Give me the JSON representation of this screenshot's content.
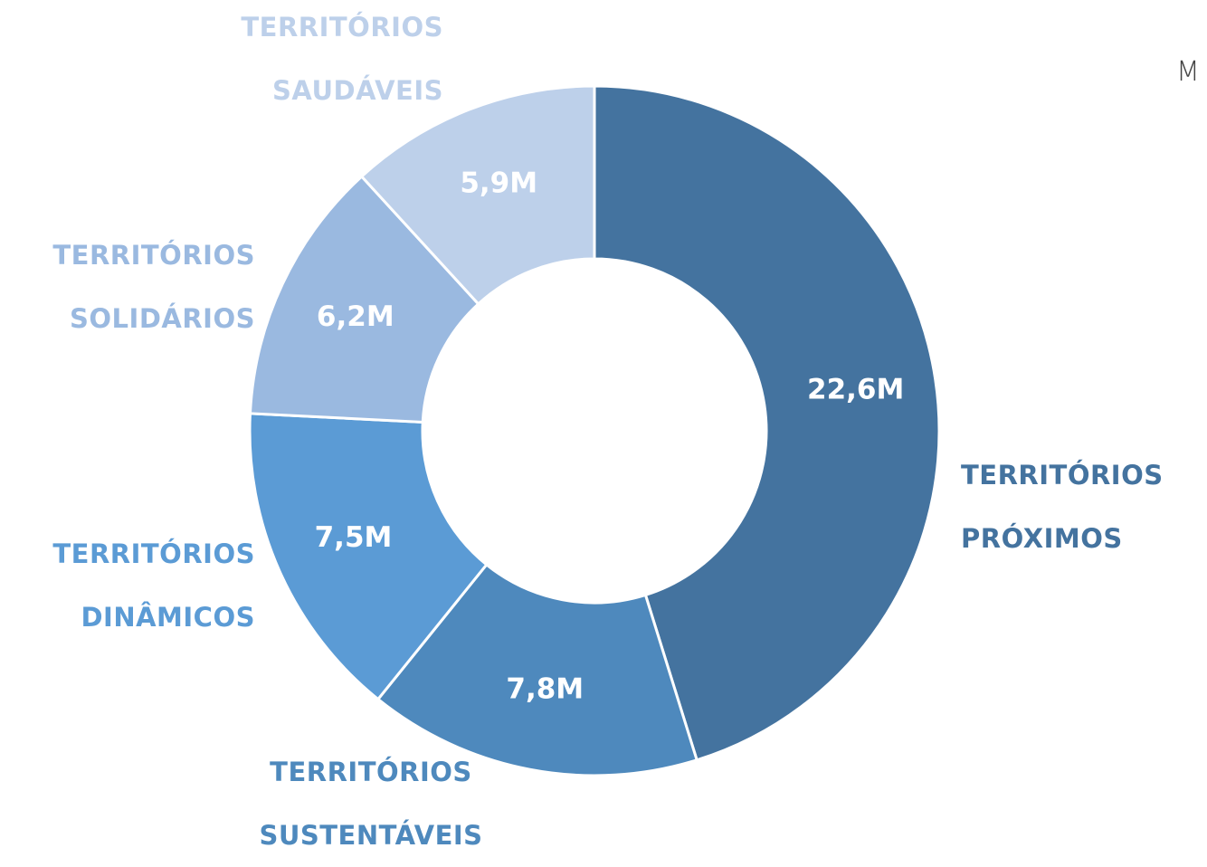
{
  "chart_data": {
    "type": "donut",
    "annotation": "M",
    "categories": [
      "TERRITÓRIOS PRÓXIMOS",
      "TERRITÓRIOS SUSTENTÁVEIS",
      "TERRITÓRIOS DINÂMICOS",
      "TERRITÓRIOS SOLIDÁRIOS",
      "TERRITÓRIOS SAUDÁVEIS"
    ],
    "values": [
      22.6,
      7.8,
      7.5,
      6.2,
      5.9
    ],
    "value_labels": [
      "22,6M",
      "7,8M",
      "7,5M",
      "6,2M",
      "5,9M"
    ],
    "colors": [
      "#44739f",
      "#4e89bd",
      "#5b9bd5",
      "#9ab9e0",
      "#bdd0ea"
    ]
  }
}
